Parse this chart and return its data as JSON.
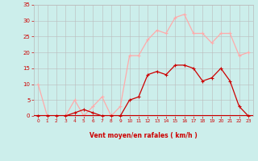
{
  "x": [
    0,
    1,
    2,
    3,
    4,
    5,
    6,
    7,
    8,
    9,
    10,
    11,
    12,
    13,
    14,
    15,
    16,
    17,
    18,
    19,
    20,
    21,
    22,
    23
  ],
  "vent_moyen": [
    0,
    0,
    0,
    0,
    1,
    2,
    1,
    0,
    0,
    0,
    5,
    6,
    13,
    14,
    13,
    16,
    16,
    15,
    11,
    12,
    15,
    11,
    3,
    0
  ],
  "rafales": [
    10,
    0,
    0,
    0,
    5,
    0,
    3,
    6,
    0,
    3,
    19,
    19,
    24,
    27,
    26,
    31,
    32,
    26,
    26,
    23,
    26,
    26,
    19,
    20
  ],
  "ylim": [
    0,
    35
  ],
  "xlim": [
    -0.5,
    23.5
  ],
  "yticks": [
    0,
    5,
    10,
    15,
    20,
    25,
    30,
    35
  ],
  "xticks": [
    0,
    1,
    2,
    3,
    4,
    5,
    6,
    7,
    8,
    9,
    10,
    11,
    12,
    13,
    14,
    15,
    16,
    17,
    18,
    19,
    20,
    21,
    22,
    23
  ],
  "xlabel": "Vent moyen/en rafales ( km/h )",
  "color_moyen": "#cc0000",
  "color_rafales": "#ffaaaa",
  "bg_color": "#cceeeb",
  "grid_color": "#bbbbbb",
  "xlabel_color": "#cc0000",
  "tick_color": "#cc0000",
  "axisline_color": "#cc0000"
}
